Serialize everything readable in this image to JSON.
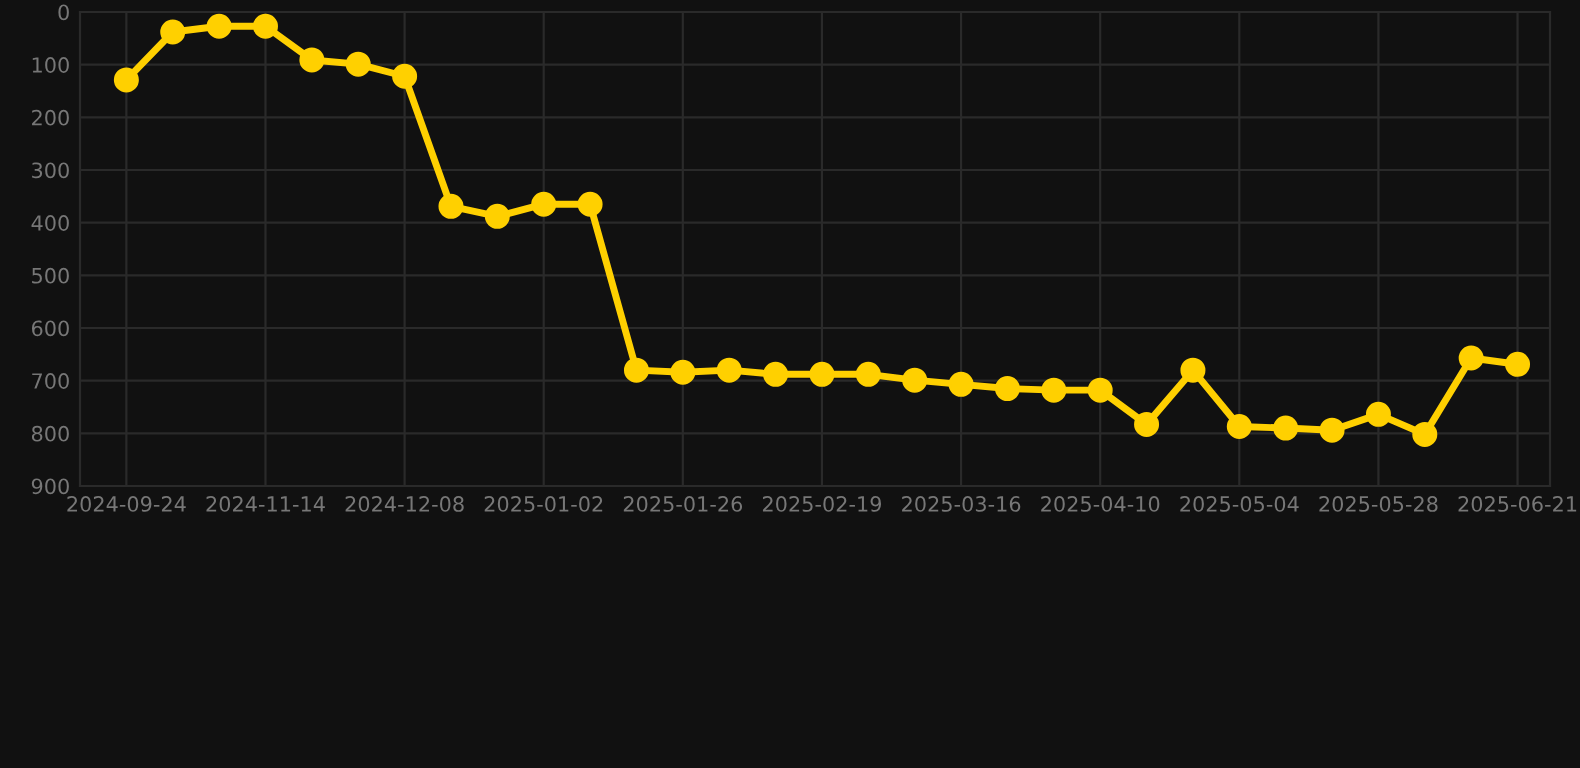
{
  "chart_data": {
    "type": "line",
    "categories": [
      "2024-09-24",
      null,
      null,
      "2024-11-14",
      null,
      null,
      "2024-12-08",
      null,
      null,
      "2025-01-02",
      null,
      null,
      "2025-01-26",
      null,
      null,
      "2025-02-19",
      null,
      null,
      "2025-03-16",
      null,
      null,
      "2025-04-10",
      null,
      null,
      "2025-05-04",
      null,
      null,
      "2025-05-28",
      null,
      null,
      "2025-06-21"
    ],
    "series": [
      {
        "color": "#ffd000",
        "values": [
          129,
          38,
          27,
          27,
          91,
          99,
          122,
          369,
          388,
          365,
          365,
          680,
          684,
          680,
          688,
          688,
          688,
          699,
          707,
          715,
          718,
          718,
          783,
          680,
          787,
          790,
          794,
          764,
          802,
          657,
          669
        ]
      }
    ],
    "ylim": [
      900,
      0
    ],
    "yticks": [
      0,
      100,
      200,
      300,
      400,
      500,
      600,
      700,
      800,
      900
    ],
    "grid": true,
    "marker": "circle",
    "line_style": "solid"
  }
}
